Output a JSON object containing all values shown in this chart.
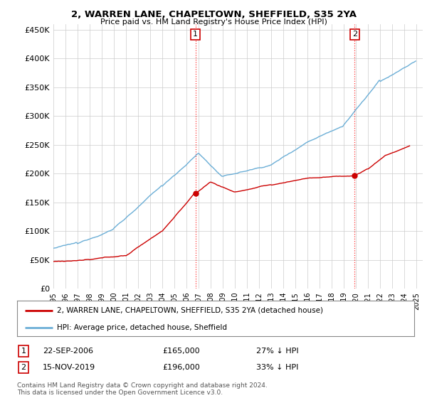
{
  "title": "2, WARREN LANE, CHAPELTOWN, SHEFFIELD, S35 2YA",
  "subtitle": "Price paid vs. HM Land Registry's House Price Index (HPI)",
  "ylabel_ticks": [
    "£0",
    "£50K",
    "£100K",
    "£150K",
    "£200K",
    "£250K",
    "£300K",
    "£350K",
    "£400K",
    "£450K"
  ],
  "ytick_vals": [
    0,
    50000,
    100000,
    150000,
    200000,
    250000,
    300000,
    350000,
    400000,
    450000
  ],
  "ylim": [
    0,
    460000
  ],
  "xlim_start": 1995.0,
  "xlim_end": 2025.5,
  "legend_line1": "2, WARREN LANE, CHAPELTOWN, SHEFFIELD, S35 2YA (detached house)",
  "legend_line2": "HPI: Average price, detached house, Sheffield",
  "sale1_date": "22-SEP-2006",
  "sale1_price": "£165,000",
  "sale1_pct": "27% ↓ HPI",
  "sale2_date": "15-NOV-2019",
  "sale2_price": "£196,000",
  "sale2_pct": "33% ↓ HPI",
  "footnote1": "Contains HM Land Registry data © Crown copyright and database right 2024.",
  "footnote2": "This data is licensed under the Open Government Licence v3.0.",
  "sale1_x": 2006.73,
  "sale1_y": 165000,
  "sale2_x": 2019.88,
  "sale2_y": 196000,
  "hpi_color": "#6baed6",
  "price_color": "#cc0000",
  "background_color": "#ffffff",
  "grid_color": "#cccccc",
  "hpi_anchor_years": [
    1995,
    1997,
    2000,
    2004,
    2007,
    2009,
    2013,
    2016,
    2019,
    2022,
    2025
  ],
  "hpi_anchor_vals": [
    70000,
    78000,
    105000,
    178000,
    235000,
    195000,
    215000,
    255000,
    285000,
    360000,
    395000
  ],
  "price_anchor_years": [
    1995,
    1998,
    2001,
    2004,
    2006.73,
    2008,
    2010,
    2013,
    2016,
    2019.88,
    2021,
    2022.5,
    2024.5
  ],
  "price_anchor_vals": [
    47000,
    50000,
    57000,
    100000,
    165000,
    185000,
    168000,
    180000,
    192000,
    196000,
    208000,
    232000,
    248000
  ]
}
